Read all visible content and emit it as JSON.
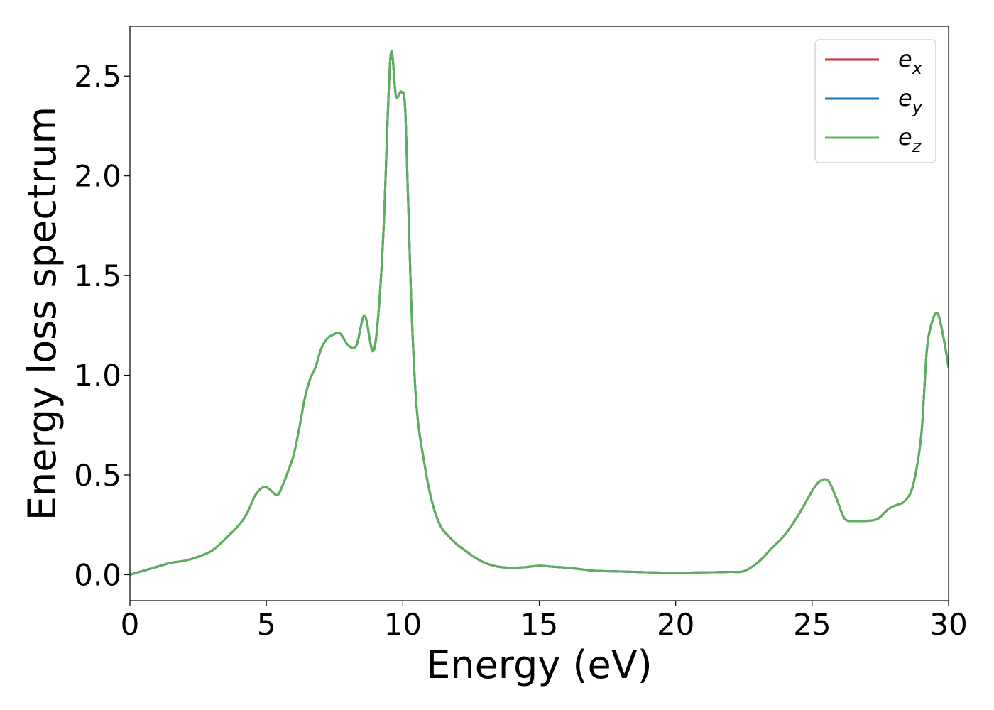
{
  "chart_data": {
    "type": "line",
    "xlabel": "Energy (eV)",
    "ylabel": "Energy loss spectrum",
    "xlim": [
      0,
      30
    ],
    "ylim": [
      -0.13,
      2.75
    ],
    "xticks": [
      0,
      5,
      10,
      15,
      20,
      25,
      30
    ],
    "xtick_labels": [
      "0",
      "5",
      "10",
      "15",
      "20",
      "25",
      "30"
    ],
    "yticks": [
      0.0,
      0.5,
      1.0,
      1.5,
      2.0,
      2.5
    ],
    "ytick_labels": [
      "0.0",
      "0.5",
      "1.0",
      "1.5",
      "2.0",
      "2.5"
    ],
    "grid": false,
    "legend_position": "top-right",
    "series": [
      {
        "name": "e",
        "subscript": "x",
        "color": "#d62728"
      },
      {
        "name": "e",
        "subscript": "y",
        "color": "#1f77b4"
      },
      {
        "name": "e",
        "subscript": "z",
        "color": "#5cb05c"
      }
    ],
    "x": [
      0,
      0.5,
      1.0,
      1.5,
      2.0,
      2.5,
      3.0,
      3.5,
      4.0,
      4.3,
      4.6,
      4.9,
      5.1,
      5.4,
      5.6,
      5.8,
      6.0,
      6.2,
      6.4,
      6.6,
      6.8,
      7.0,
      7.2,
      7.4,
      7.7,
      8.0,
      8.3,
      8.6,
      8.9,
      9.1,
      9.3,
      9.55,
      9.75,
      9.95,
      10.1,
      10.3,
      10.5,
      10.8,
      11.1,
      11.4,
      11.7,
      12.0,
      12.3,
      12.6,
      13.0,
      13.5,
      14.0,
      14.5,
      15.0,
      15.5,
      16.0,
      16.5,
      17.0,
      18.0,
      19.0,
      20.0,
      21.0,
      22.0,
      22.5,
      23.0,
      23.5,
      24.0,
      24.5,
      25.0,
      25.3,
      25.6,
      25.9,
      26.2,
      26.6,
      27.0,
      27.4,
      27.8,
      28.1,
      28.4,
      28.7,
      29.0,
      29.2,
      29.4,
      29.6,
      29.8,
      30.0
    ],
    "values": [
      0.0,
      0.02,
      0.04,
      0.06,
      0.07,
      0.09,
      0.12,
      0.18,
      0.25,
      0.31,
      0.4,
      0.44,
      0.43,
      0.4,
      0.45,
      0.52,
      0.6,
      0.73,
      0.88,
      0.98,
      1.04,
      1.13,
      1.18,
      1.2,
      1.21,
      1.15,
      1.15,
      1.3,
      1.12,
      1.3,
      1.75,
      2.6,
      2.4,
      2.42,
      2.3,
      1.4,
      0.85,
      0.55,
      0.35,
      0.24,
      0.19,
      0.15,
      0.12,
      0.09,
      0.06,
      0.04,
      0.035,
      0.038,
      0.045,
      0.04,
      0.035,
      0.028,
      0.02,
      0.016,
      0.012,
      0.01,
      0.012,
      0.014,
      0.018,
      0.06,
      0.13,
      0.2,
      0.3,
      0.42,
      0.47,
      0.47,
      0.38,
      0.28,
      0.27,
      0.27,
      0.28,
      0.33,
      0.35,
      0.37,
      0.45,
      0.7,
      1.12,
      1.27,
      1.31,
      1.2,
      1.04
    ]
  }
}
